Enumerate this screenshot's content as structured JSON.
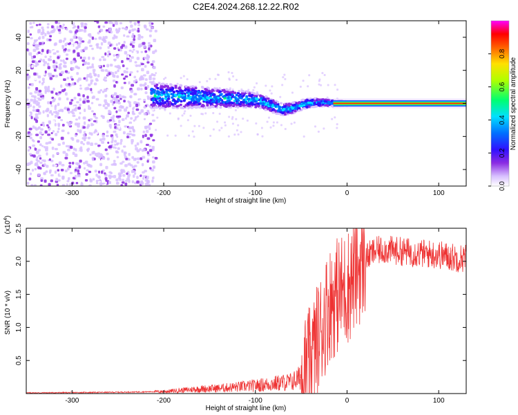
{
  "figure_title": "C2E4.2024.268.12.22.R02",
  "chart_data": [
    {
      "type": "heatmap",
      "title": "C2E4.2024.268.12.22.R02",
      "xlabel": "Height of straight line (km)",
      "ylabel": "Frequency (Hz)",
      "xlim": [
        -350,
        130
      ],
      "ylim": [
        -50,
        50
      ],
      "xticks": [
        -300,
        -200,
        -100,
        0,
        100
      ],
      "yticks": [
        -40,
        -20,
        0,
        20,
        40
      ],
      "colorbar": {
        "label": "Normalized spectral amplitude",
        "range": [
          0,
          1
        ],
        "ticks": [
          0.0,
          0.2,
          0.4,
          0.6,
          0.8
        ],
        "colors": [
          "#ffffff",
          "#c8a0ff",
          "#8a2be2",
          "#3010ff",
          "#0060ff",
          "#00e0ff",
          "#00ff60",
          "#c0ff00",
          "#ffe000",
          "#ff6000",
          "#ff0000",
          "#ff00ff"
        ]
      },
      "regions": [
        {
          "name": "noise",
          "x": [
            -350,
            -210
          ],
          "freq": [
            -50,
            50
          ],
          "amplitude": 0.15
        },
        {
          "name": "signal-band",
          "x": [
            -215,
            0
          ],
          "center_freq": [
            5,
            0
          ],
          "dip_at": [
            -70,
            -5
          ],
          "amplitude": 0.45
        },
        {
          "name": "steady-line",
          "x": [
            0,
            130
          ],
          "freq": 0,
          "amplitude": 0.95
        }
      ]
    },
    {
      "type": "line",
      "xlabel": "Height of straight line (km)",
      "ylabel": "SNR (10 * v/v)",
      "scale_label": "(x10",
      "scale_exp": "4",
      "xlim": [
        -350,
        130
      ],
      "ylim": [
        0,
        2.5
      ],
      "xticks": [
        -300,
        -200,
        -100,
        0,
        100
      ],
      "yticks": [
        0.5,
        1.0,
        1.5,
        2.0,
        2.5
      ],
      "ytick_labels": [
        "0.5",
        "1.0",
        "1.5",
        "2.0",
        "2.5"
      ],
      "color": "#ee3333",
      "series": [
        {
          "name": "SNR",
          "x": [
            -350,
            -250,
            -200,
            -180,
            -160,
            -140,
            -120,
            -100,
            -80,
            -60,
            -50,
            -40,
            -30,
            -20,
            -10,
            0,
            10,
            20,
            30,
            40,
            60,
            80,
            100,
            120,
            130
          ],
          "y": [
            0.01,
            0.02,
            0.03,
            0.05,
            0.07,
            0.08,
            0.1,
            0.12,
            0.15,
            0.18,
            0.25,
            0.45,
            0.9,
            1.35,
            1.5,
            1.6,
            1.85,
            2.05,
            2.15,
            2.18,
            2.15,
            2.12,
            2.1,
            2.05,
            2.05
          ]
        }
      ]
    }
  ]
}
